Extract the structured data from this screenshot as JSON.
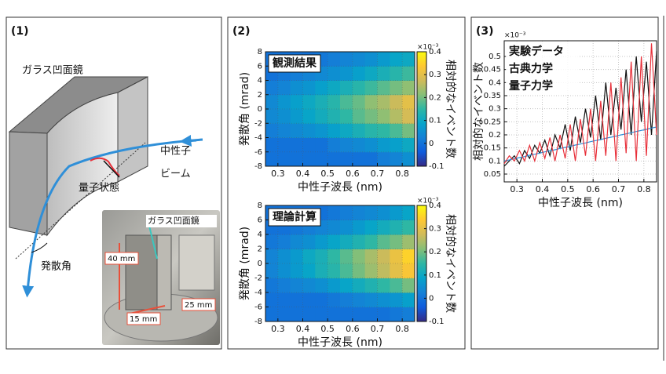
{
  "panel_labels": [
    "(1)",
    "(2)",
    "(3)"
  ],
  "diagram": {
    "mirror": "ガラス凹面鏡",
    "beam": [
      "中性子",
      "ビーム"
    ],
    "state": "量子状態",
    "angle": "発散角",
    "photo": {
      "mirror": "ガラス凹面鏡",
      "dims": [
        "40 mm",
        "25 mm",
        "15 mm"
      ]
    }
  },
  "chart_data": [
    {
      "type": "heatmap",
      "label": "観測結果",
      "xlabel": "中性子波長 (nm)",
      "ylabel": "発散角 (mrad)",
      "zlabel": "相対的なイベント数",
      "z_multiplier": "×10⁻³",
      "x_bins": [
        0.25,
        0.3,
        0.35,
        0.4,
        0.45,
        0.5,
        0.55,
        0.6,
        0.65,
        0.7,
        0.75,
        0.8,
        0.85
      ],
      "y_bins": [
        -8,
        -6,
        -4,
        -2,
        0,
        2,
        4,
        6,
        8
      ],
      "z": [
        [
          0,
          0,
          0,
          0,
          0,
          0,
          0,
          0,
          0,
          0.02,
          0.03,
          0.05
        ],
        [
          0,
          0,
          0,
          0,
          0,
          0.02,
          0.03,
          0.04,
          0.05,
          0.07,
          0.08,
          0.1
        ],
        [
          0.02,
          0.03,
          0.04,
          0.05,
          0.06,
          0.08,
          0.1,
          0.12,
          0.14,
          0.15,
          0.17,
          0.2
        ],
        [
          0.04,
          0.05,
          0.07,
          0.09,
          0.11,
          0.13,
          0.15,
          0.18,
          0.2,
          0.22,
          0.25,
          0.28
        ],
        [
          0.04,
          0.06,
          0.08,
          0.1,
          0.12,
          0.14,
          0.17,
          0.19,
          0.22,
          0.24,
          0.27,
          0.3
        ],
        [
          0.02,
          0.03,
          0.05,
          0.06,
          0.08,
          0.1,
          0.12,
          0.14,
          0.16,
          0.18,
          0.2,
          0.22
        ],
        [
          0,
          0.01,
          0.02,
          0.03,
          0.04,
          0.05,
          0.06,
          0.08,
          0.1,
          0.12,
          0.14,
          0.16
        ],
        [
          0,
          0,
          0,
          0,
          0.01,
          0.02,
          0.03,
          0.04,
          0.05,
          0.07,
          0.09,
          0.1
        ]
      ],
      "xlim": [
        0.25,
        0.85
      ],
      "ylim": [
        -8,
        8
      ],
      "zlim": [
        -0.1,
        0.4
      ],
      "xticks": [
        0.3,
        0.4,
        0.5,
        0.6,
        0.7,
        0.8
      ],
      "yticks": [
        -8,
        -6,
        -4,
        -2,
        0,
        2,
        4,
        6,
        8
      ],
      "zticks": [
        -0.1,
        0,
        0.1,
        0.2,
        0.3,
        0.4
      ],
      "colormap": [
        "#352a87",
        "#0f5cdd",
        "#1481d6",
        "#06a4ca",
        "#2eb7a4",
        "#87bf77",
        "#d1bb59",
        "#fec832",
        "#f9fb0e"
      ],
      "grid": true
    },
    {
      "type": "heatmap",
      "label": "理論計算",
      "xlabel": "中性子波長 (nm)",
      "ylabel": "発散角 (mrad)",
      "zlabel": "相対的なイベント数",
      "z_multiplier": "×10⁻³",
      "x_bins": [
        0.25,
        0.3,
        0.35,
        0.4,
        0.45,
        0.5,
        0.55,
        0.6,
        0.65,
        0.7,
        0.75,
        0.8,
        0.85
      ],
      "y_bins": [
        -8,
        -6,
        -4,
        -2,
        0,
        2,
        4,
        6,
        8
      ],
      "z": [
        [
          0,
          0,
          0,
          0,
          0,
          0,
          0,
          0,
          0,
          0,
          0.01,
          0.02
        ],
        [
          0,
          0,
          0,
          0,
          0,
          0.01,
          0.02,
          0.03,
          0.04,
          0.05,
          0.06,
          0.08
        ],
        [
          0.01,
          0.02,
          0.03,
          0.04,
          0.05,
          0.07,
          0.09,
          0.11,
          0.13,
          0.15,
          0.17,
          0.2
        ],
        [
          0.03,
          0.05,
          0.07,
          0.09,
          0.12,
          0.14,
          0.17,
          0.2,
          0.23,
          0.26,
          0.3,
          0.33
        ],
        [
          0.03,
          0.05,
          0.07,
          0.1,
          0.12,
          0.15,
          0.18,
          0.21,
          0.24,
          0.27,
          0.31,
          0.35
        ],
        [
          0.01,
          0.02,
          0.04,
          0.05,
          0.07,
          0.09,
          0.11,
          0.13,
          0.15,
          0.18,
          0.2,
          0.23
        ],
        [
          0,
          0,
          0.01,
          0.02,
          0.03,
          0.04,
          0.05,
          0.07,
          0.09,
          0.11,
          0.13,
          0.15
        ],
        [
          0,
          0,
          0,
          0,
          0,
          0.01,
          0.02,
          0.03,
          0.04,
          0.05,
          0.07,
          0.09
        ]
      ],
      "xlim": [
        0.25,
        0.85
      ],
      "ylim": [
        -8,
        8
      ],
      "zlim": [
        -0.1,
        0.4
      ],
      "xticks": [
        0.3,
        0.4,
        0.5,
        0.6,
        0.7,
        0.8
      ],
      "yticks": [
        -8,
        -6,
        -4,
        -2,
        0,
        2,
        4,
        6,
        8
      ],
      "zticks": [
        -0.1,
        0,
        0.1,
        0.2,
        0.3,
        0.4
      ],
      "colormap": [
        "#352a87",
        "#0f5cdd",
        "#1481d6",
        "#06a4ca",
        "#2eb7a4",
        "#87bf77",
        "#d1bb59",
        "#fec832",
        "#f9fb0e"
      ],
      "grid": true
    },
    {
      "type": "line",
      "xlabel": "中性子波長 (nm)",
      "ylabel": "相対的なイベント数",
      "y_multiplier": "×10⁻³",
      "x": [
        0.25,
        0.27,
        0.29,
        0.31,
        0.33,
        0.35,
        0.37,
        0.39,
        0.41,
        0.43,
        0.45,
        0.47,
        0.49,
        0.51,
        0.53,
        0.55,
        0.57,
        0.59,
        0.61,
        0.63,
        0.65,
        0.67,
        0.69,
        0.71,
        0.73,
        0.75,
        0.77,
        0.79,
        0.81,
        0.83,
        0.85
      ],
      "series": [
        {
          "name": "実験データ",
          "color": "#111111",
          "values": [
            0.08,
            0.1,
            0.12,
            0.09,
            0.14,
            0.11,
            0.16,
            0.13,
            0.18,
            0.12,
            0.2,
            0.15,
            0.24,
            0.14,
            0.27,
            0.17,
            0.3,
            0.19,
            0.35,
            0.18,
            0.4,
            0.2,
            0.38,
            0.22,
            0.45,
            0.2,
            0.5,
            0.25,
            0.48,
            0.2,
            0.52
          ]
        },
        {
          "name": "古典力学",
          "color": "#2f8fd8",
          "values": [
            0.1,
            0.104,
            0.109,
            0.113,
            0.117,
            0.122,
            0.126,
            0.13,
            0.135,
            0.139,
            0.143,
            0.148,
            0.152,
            0.156,
            0.161,
            0.165,
            0.169,
            0.174,
            0.178,
            0.182,
            0.187,
            0.191,
            0.195,
            0.2,
            0.204,
            0.208,
            0.213,
            0.217,
            0.221,
            0.226,
            0.23
          ]
        },
        {
          "name": "量子力学",
          "color": "#e8303a",
          "values": [
            0.09,
            0.12,
            0.1,
            0.14,
            0.1,
            0.16,
            0.1,
            0.17,
            0.11,
            0.19,
            0.1,
            0.2,
            0.11,
            0.24,
            0.1,
            0.26,
            0.12,
            0.3,
            0.1,
            0.33,
            0.12,
            0.4,
            0.1,
            0.42,
            0.13,
            0.48,
            0.1,
            0.5,
            0.12,
            0.55,
            0.2
          ]
        }
      ],
      "xlim": [
        0.25,
        0.85
      ],
      "ylim": [
        0.02,
        0.56
      ],
      "xticks": [
        0.3,
        0.4,
        0.5,
        0.6,
        0.7,
        0.8
      ],
      "yticks": [
        0.05,
        0.1,
        0.15,
        0.2,
        0.25,
        0.3,
        0.35,
        0.4,
        0.45,
        0.5
      ],
      "grid": true,
      "legend": "upper left"
    }
  ]
}
